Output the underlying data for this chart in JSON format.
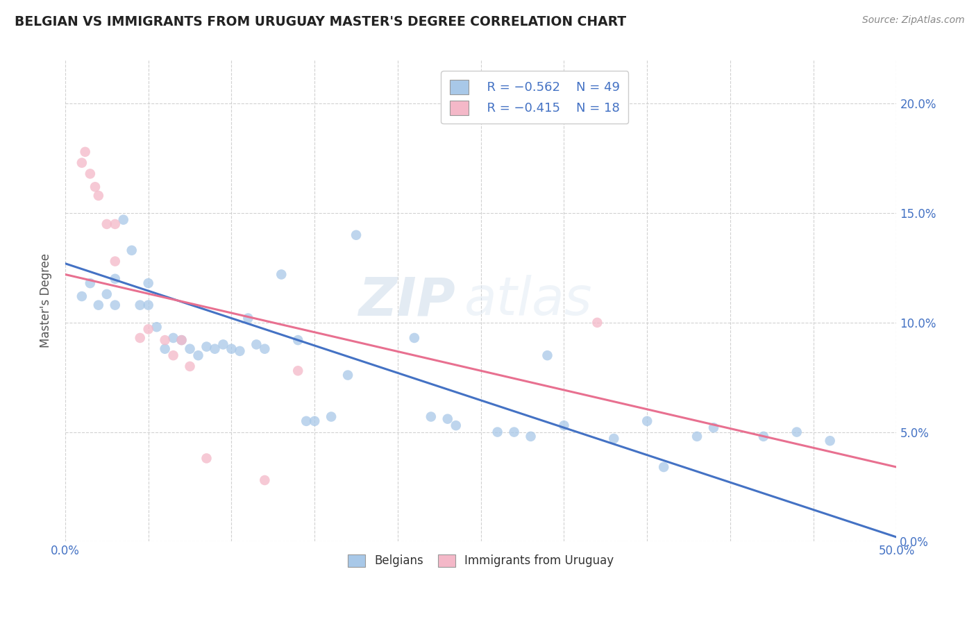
{
  "title": "BELGIAN VS IMMIGRANTS FROM URUGUAY MASTER'S DEGREE CORRELATION CHART",
  "source": "Source: ZipAtlas.com",
  "ylabel": "Master's Degree",
  "xlim": [
    0.0,
    0.5
  ],
  "ylim": [
    0.0,
    0.22
  ],
  "xticks": [
    0.0,
    0.05,
    0.1,
    0.15,
    0.2,
    0.25,
    0.3,
    0.35,
    0.4,
    0.45,
    0.5
  ],
  "yticks": [
    0.0,
    0.05,
    0.1,
    0.15,
    0.2
  ],
  "ytick_labels": [
    "0.0%",
    "5.0%",
    "10.0%",
    "15.0%",
    "20.0%"
  ],
  "xtick_labels_show": [
    "0.0%",
    "50.0%"
  ],
  "legend_r1": "R = −0.562",
  "legend_n1": "N = 49",
  "legend_r2": "R = −0.415",
  "legend_n2": "N = 18",
  "color_blue": "#a8c8e8",
  "color_pink": "#f4b8c8",
  "color_blue_line": "#4472c4",
  "color_pink_line": "#e87090",
  "watermark_zip": "ZIP",
  "watermark_atlas": "atlas",
  "blue_scatter_x": [
    0.01,
    0.015,
    0.02,
    0.025,
    0.03,
    0.03,
    0.035,
    0.04,
    0.045,
    0.05,
    0.05,
    0.055,
    0.06,
    0.065,
    0.07,
    0.075,
    0.08,
    0.085,
    0.09,
    0.095,
    0.1,
    0.105,
    0.11,
    0.115,
    0.12,
    0.13,
    0.14,
    0.145,
    0.15,
    0.16,
    0.17,
    0.175,
    0.21,
    0.22,
    0.23,
    0.235,
    0.26,
    0.27,
    0.28,
    0.29,
    0.3,
    0.33,
    0.35,
    0.36,
    0.38,
    0.39,
    0.42,
    0.44,
    0.46
  ],
  "blue_scatter_y": [
    0.112,
    0.118,
    0.108,
    0.113,
    0.108,
    0.12,
    0.147,
    0.133,
    0.108,
    0.108,
    0.118,
    0.098,
    0.088,
    0.093,
    0.092,
    0.088,
    0.085,
    0.089,
    0.088,
    0.09,
    0.088,
    0.087,
    0.102,
    0.09,
    0.088,
    0.122,
    0.092,
    0.055,
    0.055,
    0.057,
    0.076,
    0.14,
    0.093,
    0.057,
    0.056,
    0.053,
    0.05,
    0.05,
    0.048,
    0.085,
    0.053,
    0.047,
    0.055,
    0.034,
    0.048,
    0.052,
    0.048,
    0.05,
    0.046
  ],
  "pink_scatter_x": [
    0.01,
    0.012,
    0.015,
    0.018,
    0.02,
    0.025,
    0.03,
    0.03,
    0.045,
    0.05,
    0.06,
    0.065,
    0.07,
    0.075,
    0.085,
    0.12,
    0.14,
    0.32
  ],
  "pink_scatter_y": [
    0.173,
    0.178,
    0.168,
    0.162,
    0.158,
    0.145,
    0.145,
    0.128,
    0.093,
    0.097,
    0.092,
    0.085,
    0.092,
    0.08,
    0.038,
    0.028,
    0.078,
    0.1
  ],
  "blue_line_x": [
    0.0,
    0.5
  ],
  "blue_line_y": [
    0.127,
    0.002
  ],
  "pink_line_x": [
    0.0,
    0.5
  ],
  "pink_line_y": [
    0.122,
    0.034
  ]
}
